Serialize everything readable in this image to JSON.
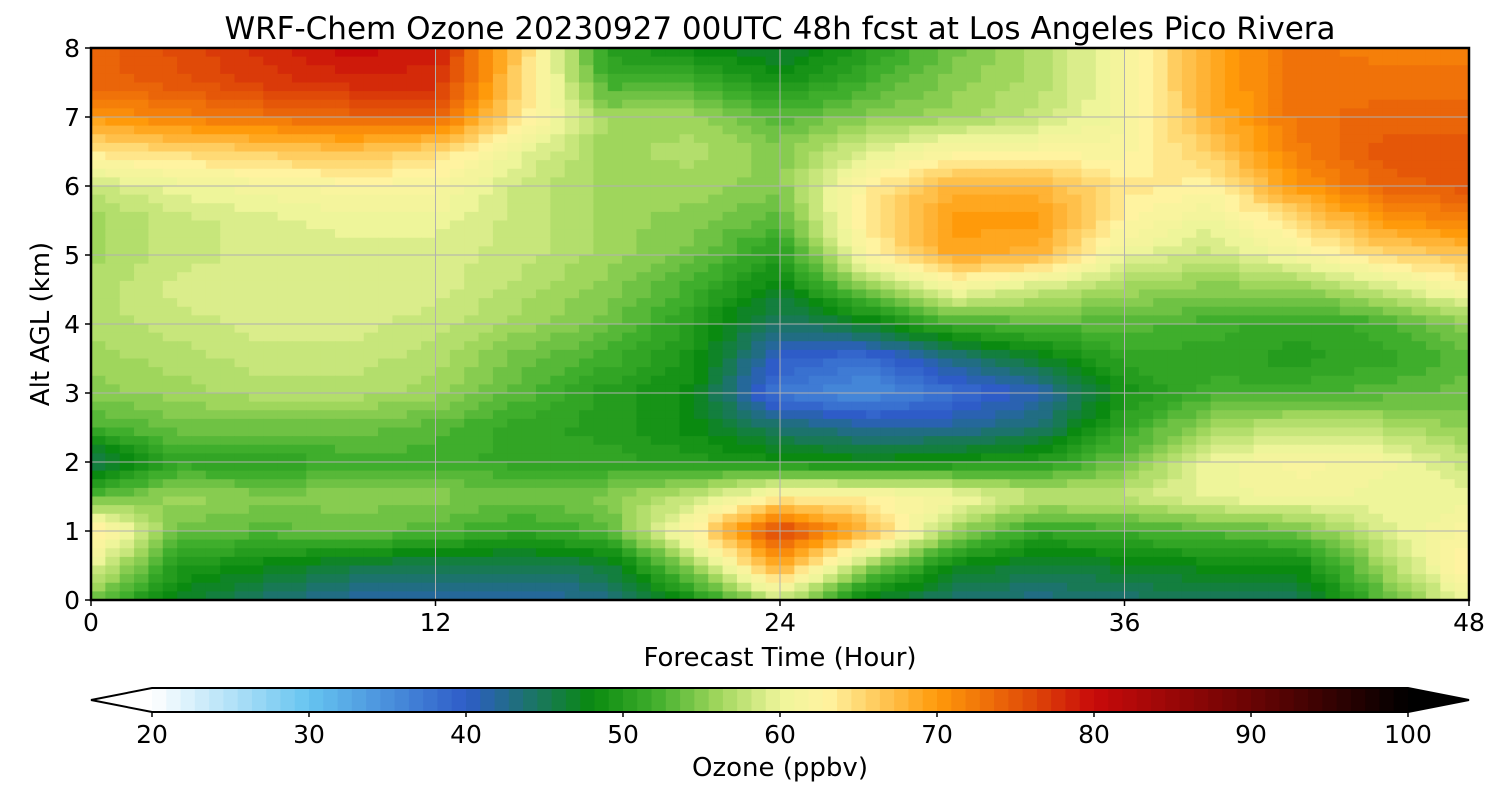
{
  "chart_data": {
    "type": "heatmap",
    "title": "WRF-Chem Ozone  20230927 00UTC 48h fcst at Los Angeles Pico Rivera",
    "xlabel": "Forecast Time (Hour)",
    "ylabel": "Alt AGL (km)",
    "xlim": [
      0,
      48
    ],
    "ylim": [
      0,
      8
    ],
    "x_ticks": [
      0,
      12,
      24,
      36,
      48
    ],
    "y_ticks": [
      0,
      1,
      2,
      3,
      4,
      5,
      6,
      7,
      8
    ],
    "grid": true,
    "x": [
      0,
      3,
      6,
      9,
      12,
      15,
      18,
      21,
      24,
      27,
      30,
      33,
      36,
      39,
      42,
      45,
      48
    ],
    "y": [
      0,
      0.5,
      1,
      1.5,
      2,
      2.5,
      3,
      3.5,
      4,
      4.5,
      5,
      5.5,
      6,
      6.5,
      7,
      7.5,
      8
    ],
    "z": [
      [
        54,
        47,
        44,
        42,
        41,
        41,
        43,
        49,
        58,
        47,
        44,
        43,
        44,
        45,
        45,
        53,
        60
      ],
      [
        60,
        50,
        48,
        46,
        45,
        45,
        46,
        56,
        69,
        56,
        48,
        46,
        47,
        48,
        48,
        56,
        64
      ],
      [
        65,
        54,
        53,
        54,
        53,
        51,
        53,
        63,
        77,
        68,
        56,
        51,
        52,
        53,
        54,
        59,
        62
      ],
      [
        53,
        56,
        55,
        55,
        55,
        54,
        55,
        58,
        63,
        63,
        61,
        58,
        58,
        60,
        61,
        60,
        60
      ],
      [
        44,
        51,
        50,
        52,
        52,
        51,
        51,
        50,
        49,
        48,
        49,
        50,
        54,
        60,
        62,
        61,
        58
      ],
      [
        52,
        54,
        54,
        54,
        53,
        51,
        50,
        48,
        44,
        42,
        42,
        44,
        51,
        56,
        58,
        57,
        55
      ],
      [
        55,
        56,
        57,
        57,
        56,
        53,
        50,
        48,
        37,
        35,
        38,
        41,
        49,
        52,
        52,
        53,
        54
      ],
      [
        56,
        57,
        58,
        58,
        57,
        54,
        52,
        49,
        40,
        38,
        43,
        47,
        51,
        51,
        50,
        51,
        53
      ],
      [
        57,
        58,
        59,
        59,
        58,
        56,
        54,
        50,
        44,
        47,
        52,
        53,
        53,
        52,
        51,
        52,
        55
      ],
      [
        57,
        59,
        59,
        59,
        59,
        57,
        55,
        52,
        47,
        55,
        61,
        58,
        56,
        55,
        55,
        58,
        62
      ],
      [
        56,
        58,
        59,
        59,
        59,
        58,
        56,
        54,
        50,
        62,
        69,
        68,
        60,
        58,
        61,
        65,
        67
      ],
      [
        56,
        58,
        59,
        60,
        60,
        58,
        56,
        55,
        53,
        64,
        70,
        70,
        63,
        60,
        65,
        70,
        72
      ],
      [
        58,
        60,
        61,
        62,
        62,
        58,
        56,
        56,
        55,
        63,
        68,
        68,
        64,
        63,
        70,
        74,
        75
      ],
      [
        64,
        65,
        66,
        67,
        65,
        60,
        56,
        57,
        55,
        59,
        62,
        62,
        62,
        66,
        72,
        75,
        75
      ],
      [
        70,
        72,
        73,
        74,
        74,
        64,
        56,
        56,
        53,
        55,
        56,
        58,
        61,
        68,
        73,
        74,
        74
      ],
      [
        74,
        75,
        77,
        78,
        78,
        65,
        52,
        52,
        49,
        52,
        55,
        57,
        61,
        69,
        73,
        73,
        73
      ],
      [
        74,
        76,
        78,
        80,
        79,
        66,
        50,
        48,
        46,
        50,
        54,
        57,
        61,
        69,
        73,
        72,
        72
      ]
    ],
    "colorbar": {
      "label": "Ozone  (ppbv)",
      "range": [
        20,
        100
      ],
      "ticks": [
        20,
        30,
        40,
        50,
        60,
        70,
        80,
        90,
        100
      ],
      "extend": "both",
      "colors": [
        {
          "v": 20,
          "c": "#ffffff"
        },
        {
          "v": 30,
          "c": "#66c4f0"
        },
        {
          "v": 40,
          "c": "#2e5cc8"
        },
        {
          "v": 48,
          "c": "#0a8a10"
        },
        {
          "v": 52,
          "c": "#3fae2c"
        },
        {
          "v": 56,
          "c": "#9fd65c"
        },
        {
          "v": 60,
          "c": "#eef59a"
        },
        {
          "v": 63,
          "c": "#fff3a0"
        },
        {
          "v": 70,
          "c": "#ff9a0a"
        },
        {
          "v": 76,
          "c": "#e04a08"
        },
        {
          "v": 80,
          "c": "#c80a0a"
        },
        {
          "v": 90,
          "c": "#6a0404"
        },
        {
          "v": 100,
          "c": "#000000"
        }
      ]
    }
  }
}
